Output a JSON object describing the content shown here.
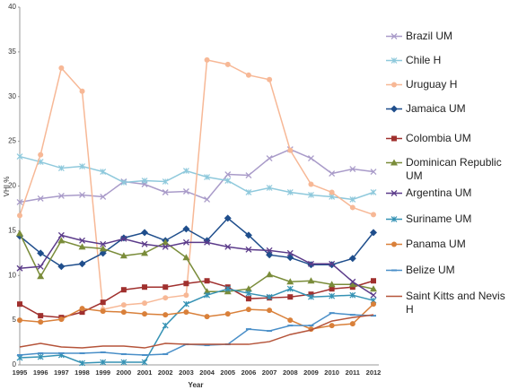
{
  "chart_data": {
    "type": "line",
    "y_label": "VHI %",
    "x_label": "Year",
    "categories": [
      "1995",
      "1996",
      "1997",
      "1998",
      "1999",
      "2000",
      "2001",
      "2002",
      "2003",
      "2004",
      "2005",
      "2006",
      "2007",
      "2008",
      "2009",
      "2010",
      "2011",
      "2012"
    ],
    "ylim": [
      0,
      40
    ],
    "yticks": [
      0,
      5,
      10,
      15,
      20,
      25,
      30,
      35,
      40
    ],
    "grid": false,
    "series": [
      {
        "name": "Brazil UM",
        "color": "#a99bc9",
        "marker": "x",
        "values": [
          18.2,
          18.6,
          18.9,
          19.0,
          18.8,
          20.5,
          20.2,
          19.3,
          19.4,
          18.5,
          21.3,
          21.2,
          23.1,
          24.1,
          23.1,
          21.4,
          21.9,
          21.6
        ]
      },
      {
        "name": "Chile H",
        "color": "#8fc9dc",
        "marker": "star",
        "values": [
          23.3,
          22.7,
          22.0,
          22.2,
          21.6,
          20.4,
          20.6,
          20.5,
          21.7,
          21.0,
          20.6,
          19.3,
          19.8,
          19.3,
          19.0,
          18.8,
          18.5,
          19.3
        ]
      },
      {
        "name": "Uruguay H",
        "color": "#f7b896",
        "marker": "circle",
        "values": [
          16.7,
          23.5,
          33.2,
          30.6,
          6.2,
          6.7,
          6.9,
          7.5,
          7.8,
          34.1,
          33.6,
          32.4,
          31.9,
          24.0,
          20.2,
          19.3,
          17.6,
          16.8
        ]
      },
      {
        "name": "Jamaica UM",
        "color": "#1f4e8c",
        "marker": "diamond",
        "values": [
          14.4,
          12.5,
          11.0,
          11.3,
          12.5,
          14.2,
          14.8,
          13.9,
          15.2,
          13.9,
          16.4,
          14.5,
          12.3,
          12.0,
          11.2,
          11.2,
          11.9,
          14.8
        ]
      },
      {
        "name": "Colombia UM",
        "color": "#a0302e",
        "marker": "square",
        "values": [
          6.8,
          5.5,
          5.3,
          5.9,
          7.0,
          8.4,
          8.7,
          8.7,
          9.1,
          9.4,
          8.7,
          7.4,
          7.5,
          7.6,
          7.9,
          8.5,
          8.7,
          9.4
        ]
      },
      {
        "name": "Dominican Republic UM",
        "color": "#7a8c3a",
        "marker": "triangle",
        "values": [
          14.7,
          9.9,
          13.9,
          13.2,
          13.0,
          12.2,
          12.5,
          13.7,
          12.0,
          8.2,
          8.2,
          8.5,
          10.1,
          9.3,
          9.4,
          9.0,
          9.0,
          8.5
        ]
      },
      {
        "name": "Argentina UM",
        "color": "#5b3b8a",
        "marker": "x",
        "values": [
          10.8,
          11.0,
          14.5,
          13.9,
          13.5,
          14.1,
          13.5,
          13.2,
          13.7,
          13.7,
          13.2,
          12.9,
          12.8,
          12.5,
          11.3,
          11.3,
          9.3,
          7.8
        ]
      },
      {
        "name": "Suriname UM",
        "color": "#3592b4",
        "marker": "star",
        "values": [
          0.8,
          0.9,
          1.1,
          0.2,
          0.3,
          0.3,
          0.3,
          4.4,
          6.8,
          7.8,
          8.5,
          8.0,
          7.6,
          8.5,
          7.6,
          7.7,
          7.8,
          7.2
        ]
      },
      {
        "name": "Panama UM",
        "color": "#d9803a",
        "marker": "circle",
        "values": [
          5.0,
          4.8,
          5.1,
          6.3,
          6.0,
          5.9,
          5.7,
          5.6,
          5.9,
          5.4,
          5.7,
          6.2,
          6.1,
          5.0,
          4.0,
          4.4,
          4.6,
          6.8
        ]
      },
      {
        "name": "Belize UM",
        "color": "#4a8fc8",
        "marker": "dash",
        "values": [
          1.1,
          1.3,
          1.3,
          1.3,
          1.4,
          1.2,
          1.1,
          1.2,
          2.3,
          2.2,
          2.3,
          4.0,
          3.8,
          4.4,
          4.4,
          5.8,
          5.6,
          5.5
        ]
      },
      {
        "name": "Saint Kitts and Nevis H",
        "color": "#b5543a",
        "marker": "none",
        "values": [
          2.0,
          2.4,
          2.0,
          1.9,
          2.1,
          2.1,
          1.9,
          2.4,
          2.3,
          2.3,
          2.3,
          2.3,
          2.6,
          3.4,
          3.9,
          4.9,
          5.3,
          5.6
        ]
      }
    ]
  }
}
